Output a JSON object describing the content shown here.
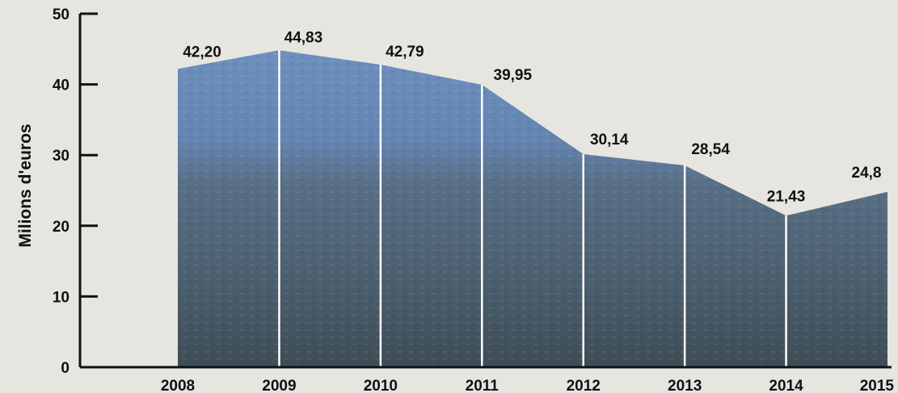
{
  "chart_data": {
    "type": "area",
    "title": "",
    "xlabel": "",
    "ylabel": "Milions d'euros",
    "ylim": [
      0,
      50
    ],
    "yticks": [
      0,
      10,
      20,
      30,
      40,
      50
    ],
    "categories": [
      "2008",
      "2009",
      "2010",
      "2011",
      "2012",
      "2013",
      "2014",
      "2015"
    ],
    "values": [
      42.2,
      44.83,
      42.79,
      39.95,
      30.14,
      28.54,
      21.43,
      24.8
    ],
    "value_labels": [
      "42,20",
      "44,83",
      "42,79",
      "39,95",
      "30,14",
      "28,54",
      "21,43",
      "24,8"
    ],
    "grid": false,
    "legend": "none",
    "colors": {
      "area_top": "#6d8fbd",
      "area_bottom": "#3f5262",
      "divider": "#ffffff",
      "axis": "#111111",
      "background": "#e6e5e0"
    }
  }
}
